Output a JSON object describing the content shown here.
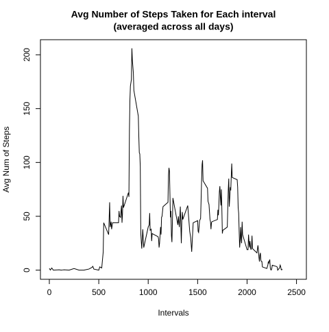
{
  "chart_data": {
    "type": "line",
    "title": "Avg Number of Steps Taken for Each interval",
    "subtitle": "(averaged across all days)",
    "xlabel": "Intervals",
    "ylabel": "Avg Num of Steps",
    "color": "#000000",
    "x": [
      0,
      10,
      25,
      40,
      100,
      120,
      135,
      150,
      200,
      250,
      300,
      350,
      400,
      430,
      440,
      450,
      500,
      510,
      530,
      545,
      550,
      600,
      605,
      610,
      615,
      625,
      630,
      640,
      700,
      705,
      710,
      720,
      730,
      735,
      740,
      745,
      750,
      800,
      805,
      810,
      815,
      820,
      830,
      835,
      840,
      850,
      855,
      900,
      905,
      910,
      915,
      920,
      925,
      935,
      945,
      955,
      1000,
      1010,
      1015,
      1020,
      1030,
      1035,
      1040,
      1100,
      1105,
      1110,
      1115,
      1125,
      1130,
      1135,
      1140,
      1150,
      1200,
      1205,
      1210,
      1215,
      1225,
      1230,
      1235,
      1240,
      1245,
      1250,
      1300,
      1305,
      1315,
      1325,
      1330,
      1335,
      1340,
      1345,
      1350,
      1400,
      1410,
      1420,
      1430,
      1440,
      1445,
      1455,
      1500,
      1505,
      1510,
      1520,
      1530,
      1535,
      1540,
      1545,
      1550,
      1555,
      1600,
      1605,
      1615,
      1625,
      1630,
      1635,
      1640,
      1645,
      1700,
      1705,
      1710,
      1715,
      1720,
      1725,
      1730,
      1735,
      1740,
      1745,
      1750,
      1755,
      1800,
      1805,
      1810,
      1815,
      1820,
      1825,
      1830,
      1835,
      1845,
      1850,
      1900,
      1905,
      1910,
      1915,
      1920,
      1925,
      1930,
      1935,
      1940,
      1945,
      1950,
      1955,
      2000,
      2005,
      2010,
      2015,
      2020,
      2025,
      2030,
      2035,
      2040,
      2045,
      2050,
      2055,
      2100,
      2110,
      2115,
      2120,
      2125,
      2130,
      2135,
      2140,
      2145,
      2150,
      2155,
      2200,
      2210,
      2215,
      2220,
      2225,
      2230,
      2235,
      2240,
      2245,
      2250,
      2255,
      2300,
      2305,
      2310,
      2315,
      2320,
      2325,
      2330,
      2335,
      2340,
      2345,
      2350,
      2355
    ],
    "values": [
      1.7,
      0.1,
      2,
      0,
      0.3,
      0,
      0.2,
      0.3,
      0,
      1.5,
      0,
      0,
      1,
      2.5,
      3.5,
      1,
      0,
      3,
      2,
      17,
      44,
      33,
      48,
      63,
      40,
      45,
      38,
      44,
      44,
      55,
      50,
      49,
      60,
      44,
      52,
      69,
      58,
      72,
      68,
      129,
      158,
      171,
      177,
      206,
      195,
      183,
      167,
      143,
      124,
      109,
      108,
      96,
      34,
      20,
      38,
      21,
      40,
      42,
      53,
      37,
      38,
      27,
      34,
      31,
      29,
      21,
      25,
      40,
      33,
      49,
      50,
      59,
      63,
      88,
      95,
      92,
      49,
      55,
      32,
      26,
      45,
      67,
      42,
      50,
      40,
      59,
      42,
      25,
      46,
      54,
      47,
      60,
      48,
      36,
      30,
      17,
      26,
      44,
      46,
      36,
      35,
      46,
      48,
      65,
      83,
      98,
      102,
      83,
      76,
      64,
      61,
      47,
      45,
      38,
      44,
      45,
      47,
      56,
      51,
      61,
      73,
      78,
      68,
      60,
      75,
      57,
      34,
      37,
      40,
      58,
      75,
      85,
      59,
      67,
      77,
      74,
      99,
      86,
      84,
      77,
      58,
      53,
      36,
      21,
      27,
      40,
      30,
      25,
      45,
      33,
      19,
      19,
      19,
      33,
      26,
      21,
      27,
      21,
      19,
      21,
      32,
      20,
      16,
      23,
      19,
      12,
      8,
      14,
      16,
      9,
      8,
      8,
      3,
      1.5,
      4.6,
      8,
      6.6,
      8.7,
      9.8,
      2.2,
      0.3,
      0.1,
      1.6,
      4.6,
      3.3,
      2.8,
      0,
      0.8,
      1,
      1.6,
      2.6,
      4.7,
      3.3,
      0.6,
      0.2,
      1.1
    ],
    "xlim": [
      -90,
      2600
    ],
    "xticks": [
      0,
      500,
      1000,
      1500,
      2000,
      2500
    ],
    "ylim": [
      -8.5,
      214
    ],
    "yticks": [
      0,
      50,
      100,
      150,
      200
    ]
  }
}
